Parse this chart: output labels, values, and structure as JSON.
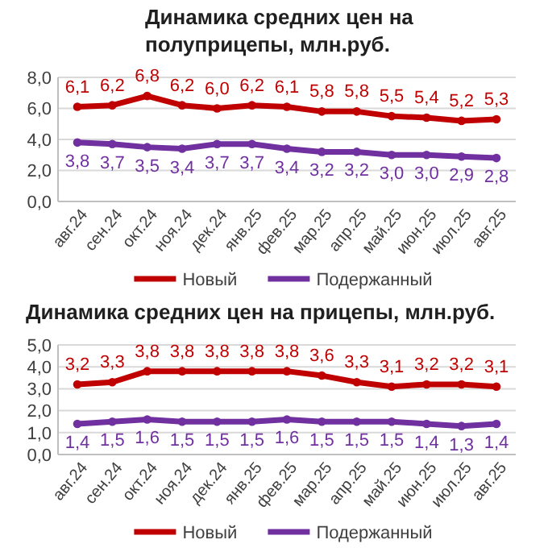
{
  "chart_data": [
    {
      "type": "line",
      "title": "Динамика средних цен на полуприцепы, млн.руб.",
      "categories": [
        "авг.24",
        "сен.24",
        "окт.24",
        "ноя.24",
        "дек.24",
        "янв.25",
        "фев.25",
        "мар.25",
        "апр.25",
        "май.25",
        "июн.25",
        "июл.25",
        "авг.25"
      ],
      "series": [
        {
          "name": "Новый",
          "color": "#c00000",
          "values": [
            6.1,
            6.2,
            6.8,
            6.2,
            6.0,
            6.2,
            6.1,
            5.8,
            5.8,
            5.5,
            5.4,
            5.2,
            5.3
          ],
          "value_labels": [
            "6,1",
            "6,2",
            "6,8",
            "6,2",
            "6,0",
            "6,2",
            "6,1",
            "5,8",
            "5,8",
            "5,5",
            "5,4",
            "5,2",
            "5,3"
          ]
        },
        {
          "name": "Подержанный",
          "color": "#7030a0",
          "values": [
            3.8,
            3.7,
            3.5,
            3.4,
            3.7,
            3.7,
            3.4,
            3.2,
            3.2,
            3.0,
            3.0,
            2.9,
            2.8
          ],
          "value_labels": [
            "3,8",
            "3,7",
            "3,5",
            "3,4",
            "3,7",
            "3,7",
            "3,4",
            "3,2",
            "3,2",
            "3,0",
            "3,0",
            "2,9",
            "2,8"
          ]
        }
      ],
      "ylim": [
        0,
        8
      ],
      "yticks": [
        {
          "value": 0,
          "label": "0,0"
        },
        {
          "value": 2,
          "label": "2,0"
        },
        {
          "value": 4,
          "label": "4,0"
        },
        {
          "value": 6,
          "label": "6,0"
        },
        {
          "value": 8,
          "label": "8,0"
        }
      ],
      "grid": "y",
      "legend": "bottom",
      "marker": "circle"
    },
    {
      "type": "line",
      "title": "Динамика средних цен на прицепы, млн.руб.",
      "categories": [
        "авг.24",
        "сен.24",
        "окт.24",
        "ноя.24",
        "дек.24",
        "янв.25",
        "фев.25",
        "мар.25",
        "апр.25",
        "май.25",
        "июн.25",
        "июл.25",
        "авг.25"
      ],
      "series": [
        {
          "name": "Новый",
          "color": "#c00000",
          "values": [
            3.2,
            3.3,
            3.8,
            3.8,
            3.8,
            3.8,
            3.8,
            3.6,
            3.3,
            3.1,
            3.2,
            3.2,
            3.1
          ],
          "value_labels": [
            "3,2",
            "3,3",
            "3,8",
            "3,8",
            "3,8",
            "3,8",
            "3,8",
            "3,6",
            "3,3",
            "3,1",
            "3,2",
            "3,2",
            "3,1"
          ]
        },
        {
          "name": "Подержанный",
          "color": "#7030a0",
          "values": [
            1.4,
            1.5,
            1.6,
            1.5,
            1.5,
            1.5,
            1.6,
            1.5,
            1.5,
            1.5,
            1.4,
            1.3,
            1.4
          ],
          "value_labels": [
            "1,4",
            "1,5",
            "1,6",
            "1,5",
            "1,5",
            "1,5",
            "1,6",
            "1,5",
            "1,5",
            "1,5",
            "1,4",
            "1,3",
            "1,4"
          ]
        }
      ],
      "ylim": [
        0,
        5
      ],
      "yticks": [
        {
          "value": 0,
          "label": "0,0"
        },
        {
          "value": 1,
          "label": "1,0"
        },
        {
          "value": 2,
          "label": "2,0"
        },
        {
          "value": 3,
          "label": "3,0"
        },
        {
          "value": 4,
          "label": "4,0"
        },
        {
          "value": 5,
          "label": "5,0"
        }
      ],
      "grid": "y",
      "legend": "bottom",
      "marker": "circle"
    }
  ]
}
